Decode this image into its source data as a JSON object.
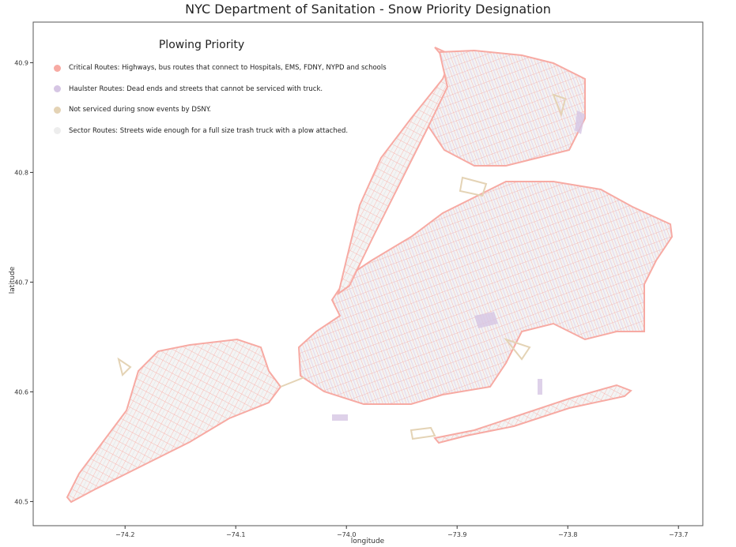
{
  "chart_data": {
    "type": "map",
    "title": "NYC Department of Sanitation - Snow Priority Designation",
    "xlabel": "longitude",
    "ylabel": "latitude",
    "xlim": [
      -74.283,
      -73.678
    ],
    "ylim": [
      40.478,
      40.937
    ],
    "xticks": [
      -74.2,
      -74.1,
      -74.0,
      -73.9,
      -73.8,
      -73.7
    ],
    "xtick_labels": [
      "−74.2",
      "−74.1",
      "−74.0",
      "−73.9",
      "−73.8",
      "−73.7"
    ],
    "yticks": [
      40.5,
      40.6,
      40.7,
      40.8,
      40.9
    ],
    "ytick_labels": [
      "40.5",
      "40.6",
      "40.7",
      "40.8",
      "40.9"
    ],
    "grid": false,
    "legend": {
      "title": "Plowing Priority",
      "placement": "top-left",
      "entries": [
        {
          "label": "Critical Routes: Highways, bus routes that connect to Hospitals, EMS, FDNY, NYPD and schools",
          "color": "#f7aaa3"
        },
        {
          "label": "Haulster Routes: Dead ends and streets that cannot be serviced with truck.",
          "color": "#d6c6e4"
        },
        {
          "label": "Not serviced during snow events by DSNY.",
          "color": "#e4d3b5"
        },
        {
          "label": "Sector Routes: Streets wide enough for a full size trash truck with a plow attached.",
          "color": "#ededed"
        }
      ]
    }
  }
}
